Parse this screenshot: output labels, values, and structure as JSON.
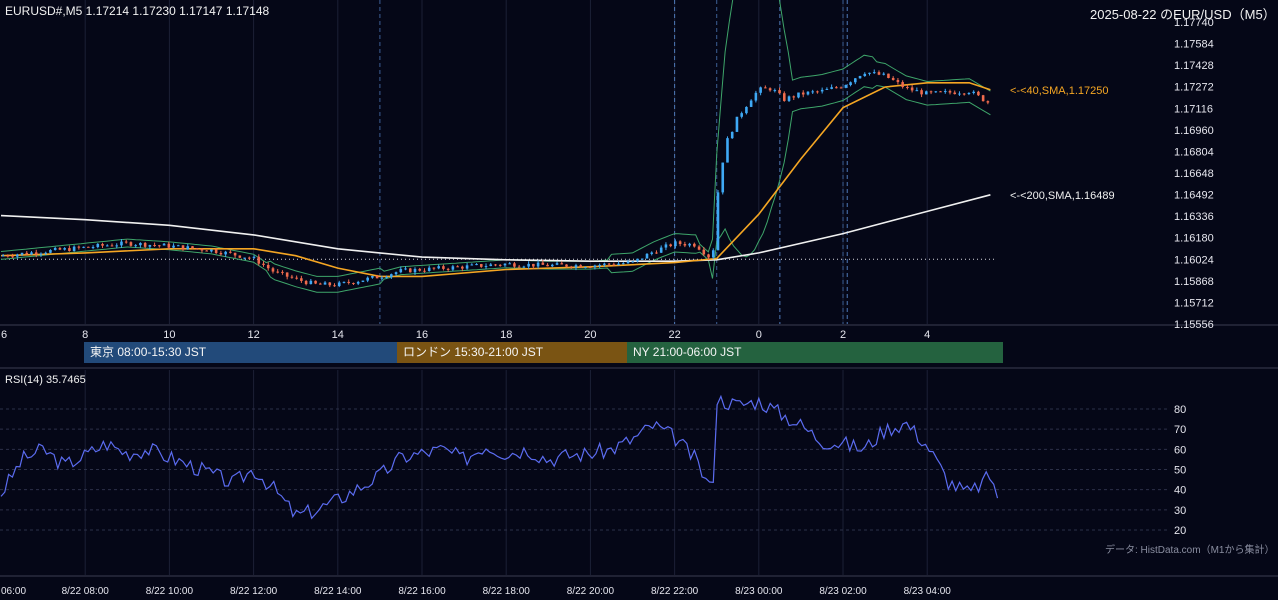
{
  "header": {
    "symbol_info": "EURUSD#,M5 1.17214 1.17230 1.17147 1.17148",
    "title": "2025-08-22 のEUR/USD（M5）"
  },
  "sessions": [
    {
      "label": "東京 08:00-15:30 JST",
      "color": "#224a7a"
    },
    {
      "label": "ロンドン 15:30-21:00 JST",
      "color": "#7a5413"
    },
    {
      "label": "NY 21:00-06:00 JST",
      "color": "#24623f"
    }
  ],
  "footnote": "データ: HistData.com（M1から集計）",
  "colors": {
    "background": "#050717",
    "candle_up": "#3fa9f5",
    "candle_down": "#ef6b4d",
    "sma40": "#f5a623",
    "sma200": "#f0f0f0",
    "bollinger": "#3ea56a",
    "rsi": "#5b6cf0"
  },
  "chart_data": [
    {
      "type": "candlestick",
      "title": "2025-08-22 のEUR/USD（M5）",
      "x_tick_labels": [
        "6",
        "8",
        "10",
        "12",
        "14",
        "16",
        "18",
        "20",
        "22",
        "0",
        "2",
        "4"
      ],
      "y_tick_labels": [
        "1.17740",
        "1.17584",
        "1.17428",
        "1.17272",
        "1.17116",
        "1.16960",
        "1.16804",
        "1.16648",
        "1.16492",
        "1.16336",
        "1.16180",
        "1.16024",
        "1.15868",
        "1.15712",
        "1.15556"
      ],
      "ylim": [
        1.15556,
        1.1774
      ],
      "x_range_hours": [
        6,
        29.8
      ],
      "last_ohlc": {
        "open": 1.17214,
        "high": 1.1723,
        "low": 1.17147,
        "close": 1.17148
      },
      "series": [
        {
          "name": "40,SMA",
          "label": "<-<40,SMA,1.17250",
          "last_value": 1.1725,
          "x": [
            6,
            8,
            10,
            12,
            13,
            14,
            15,
            16,
            18,
            20,
            22,
            23,
            24,
            25,
            26,
            27,
            28,
            29,
            29.5
          ],
          "values": [
            1.1605,
            1.1607,
            1.161,
            1.161,
            1.1605,
            1.1596,
            1.159,
            1.159,
            1.1595,
            1.1597,
            1.16,
            1.1603,
            1.1635,
            1.1675,
            1.1712,
            1.1727,
            1.173,
            1.173,
            1.1725
          ]
        },
        {
          "name": "200,SMA",
          "label": "<-<200,SMA,1.16489",
          "last_value": 1.16489,
          "x": [
            6,
            8,
            10,
            12,
            14,
            16,
            18,
            20,
            22,
            23,
            24,
            26,
            28,
            29.5
          ],
          "values": [
            1.1634,
            1.1631,
            1.1627,
            1.162,
            1.161,
            1.1604,
            1.1602,
            1.1601,
            1.1601,
            1.1602,
            1.1607,
            1.1621,
            1.1637,
            1.1649
          ]
        }
      ],
      "close_x": [
        6,
        7,
        8,
        9,
        10,
        11,
        12,
        12.5,
        13,
        13.5,
        14,
        14.5,
        15,
        15.5,
        16,
        17,
        18,
        19,
        20,
        20.5,
        21,
        21.5,
        22,
        22.5,
        22.9,
        23,
        23.2,
        23.5,
        23.8,
        24,
        24.3,
        24.6,
        25,
        25.5,
        26,
        26.5,
        27,
        27.5,
        28,
        28.5,
        29,
        29.5
      ],
      "close": [
        1.1605,
        1.1608,
        1.1611,
        1.1614,
        1.1612,
        1.1609,
        1.1603,
        1.1593,
        1.1588,
        1.1584,
        1.1584,
        1.1587,
        1.159,
        1.1594,
        1.1595,
        1.1597,
        1.1599,
        1.1598,
        1.1598,
        1.1599,
        1.16,
        1.1608,
        1.1614,
        1.1613,
        1.1602,
        1.1645,
        1.1685,
        1.1705,
        1.1718,
        1.1725,
        1.1726,
        1.1718,
        1.1722,
        1.1724,
        1.1728,
        1.1738,
        1.1735,
        1.1726,
        1.1722,
        1.1723,
        1.1724,
        1.1715
      ]
    },
    {
      "type": "line",
      "title": "RSI(14) 35.7465",
      "series_name": "RSI(14)",
      "last_value": 35.7465,
      "y_tick_labels": [
        "80",
        "70",
        "60",
        "50",
        "40",
        "30",
        "20"
      ],
      "ylim": [
        15,
        90
      ],
      "x_tick_labels": [
        "06:00",
        "8/22 08:00",
        "8/22 10:00",
        "8/22 12:00",
        "8/22 14:00",
        "8/22 16:00",
        "8/22 18:00",
        "8/22 20:00",
        "8/22 22:00",
        "8/23 00:00",
        "8/23 02:00",
        "8/23 04:00"
      ],
      "x": [
        6,
        6.5,
        7,
        7.5,
        8,
        8.5,
        9,
        9.5,
        10,
        10.5,
        11,
        11.5,
        12,
        12.5,
        13,
        13.5,
        14,
        14.5,
        15,
        15.5,
        16,
        16.5,
        17,
        17.5,
        18,
        18.5,
        19,
        19.5,
        20,
        20.5,
        21,
        21.5,
        22,
        22.5,
        22.9,
        23,
        23.5,
        24,
        24.5,
        25,
        25.5,
        26,
        26.5,
        27,
        27.5,
        28,
        28.5,
        29,
        29.5,
        29.7
      ],
      "values": [
        38,
        55,
        60,
        52,
        57,
        63,
        58,
        60,
        56,
        52,
        48,
        43,
        50,
        40,
        27,
        30,
        35,
        41,
        47,
        56,
        58,
        60,
        55,
        62,
        58,
        60,
        55,
        57,
        58,
        60,
        65,
        72,
        66,
        55,
        38,
        85,
        82,
        84,
        78,
        72,
        64,
        63,
        60,
        70,
        73,
        62,
        44,
        38,
        47,
        36
      ]
    }
  ]
}
